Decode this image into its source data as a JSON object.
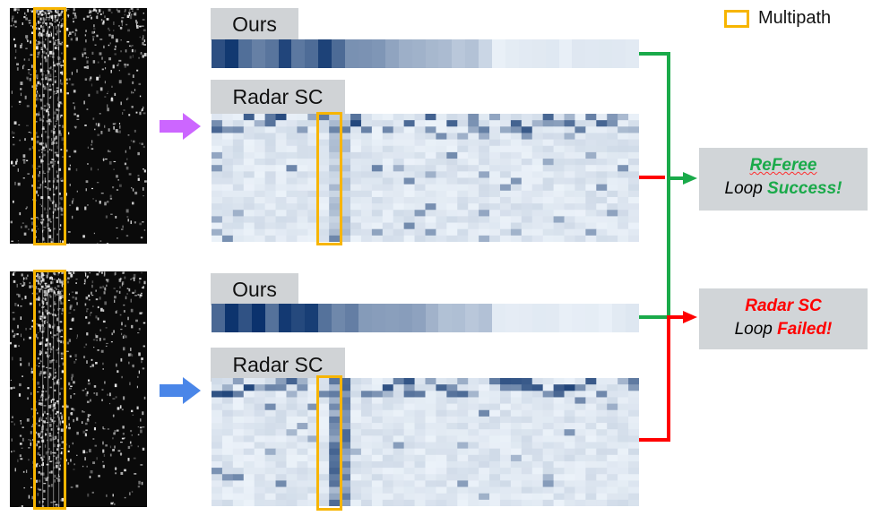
{
  "legend": {
    "label": "Multipath",
    "color": "#F7B500"
  },
  "top": {
    "ours_label": "Ours",
    "radarsc_label": "Radar SC",
    "arrow_color": "#CC66FF"
  },
  "bottom": {
    "ours_label": "Ours",
    "radarsc_label": "Radar SC",
    "arrow_color": "#4A86E8"
  },
  "results": {
    "referee": {
      "name": "ReFeree",
      "prefix": "Loop ",
      "status": "Success!",
      "color": "#1AAA4A"
    },
    "radarsc": {
      "name": "Radar SC",
      "prefix": "Loop ",
      "status": "Failed!",
      "color": "#FF0000"
    }
  },
  "colors": {
    "green_line": "#1AAA4A",
    "red_line": "#FF0000"
  }
}
